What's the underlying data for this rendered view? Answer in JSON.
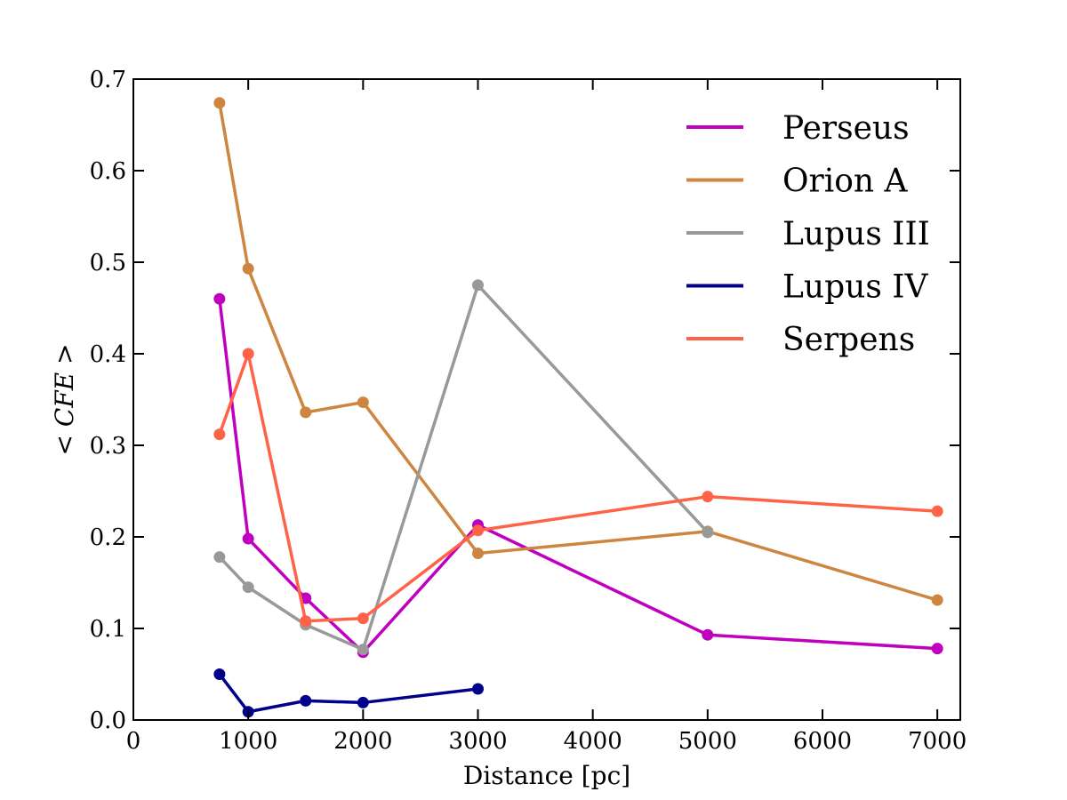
{
  "chart_data": {
    "type": "line",
    "title": "",
    "xlabel": "Distance [pc]",
    "ylabel": "< CFE >",
    "xlim": [
      0,
      7200
    ],
    "ylim": [
      0,
      0.7
    ],
    "x_ticks": [
      0,
      1000,
      2000,
      3000,
      4000,
      5000,
      6000,
      7000
    ],
    "x_tick_labels": [
      "0",
      "1000",
      "2000",
      "3000",
      "4000",
      "5000",
      "6000",
      "7000"
    ],
    "y_ticks": [
      0.0,
      0.1,
      0.2,
      0.3,
      0.4,
      0.5,
      0.6,
      0.7
    ],
    "y_tick_labels": [
      "0.0",
      "0.1",
      "0.2",
      "0.3",
      "0.4",
      "0.5",
      "0.6",
      "0.7"
    ],
    "grid": false,
    "legend_position": "top-right",
    "series": [
      {
        "name": "Perseus",
        "color": "#bf00bf",
        "x": [
          750,
          1000,
          1500,
          2000,
          3000,
          5000,
          7000
        ],
        "values": [
          0.46,
          0.198,
          0.133,
          0.074,
          0.213,
          0.093,
          0.078
        ]
      },
      {
        "name": "Orion A",
        "color": "#cd853f",
        "x": [
          750,
          1000,
          1500,
          2000,
          3000,
          5000,
          7000
        ],
        "values": [
          0.674,
          0.493,
          0.336,
          0.347,
          0.182,
          0.206,
          0.131
        ]
      },
      {
        "name": "Lupus III",
        "color": "#999999",
        "x": [
          750,
          1000,
          1500,
          2000,
          3000,
          5000
        ],
        "values": [
          0.178,
          0.145,
          0.104,
          0.077,
          0.475,
          0.205
        ]
      },
      {
        "name": "Lupus IV",
        "color": "#00008b",
        "x": [
          750,
          1000,
          1500,
          2000,
          3000
        ],
        "values": [
          0.05,
          0.009,
          0.021,
          0.019,
          0.034
        ]
      },
      {
        "name": "Serpens",
        "color": "#ff6347",
        "x": [
          750,
          1000,
          1500,
          2000,
          3000,
          5000,
          7000
        ],
        "values": [
          0.312,
          0.4,
          0.108,
          0.111,
          0.207,
          0.244,
          0.228
        ]
      }
    ]
  }
}
